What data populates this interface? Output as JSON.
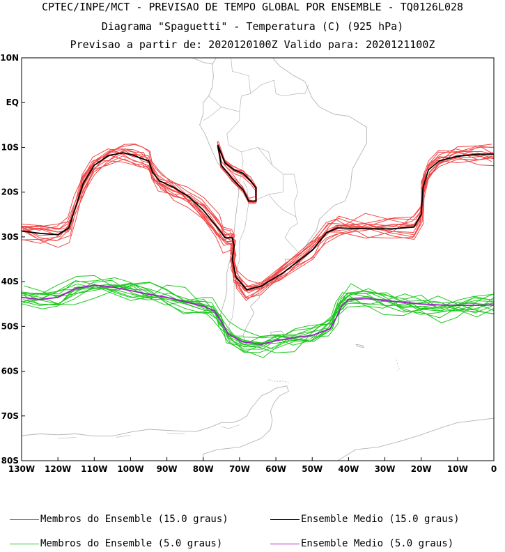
{
  "header": {
    "line1": "CPTEC/INPE/MCT - PREVISAO DE TEMPO GLOBAL POR ENSEMBLE - TQ0126L028",
    "line2": "Diagrama \"Spaguetti\" - Temperatura (C) (925 hPa)",
    "line3": "Previsao a partir de: 2020120100Z  Valido para: 2020121100Z"
  },
  "map": {
    "lon_range": [
      -130,
      0
    ],
    "lat_range": [
      -80,
      10
    ],
    "lat_ticks": [
      "10N",
      "EQ",
      "10S",
      "20S",
      "30S",
      "40S",
      "50S",
      "60S",
      "70S",
      "80S"
    ],
    "lon_ticks": [
      "130W",
      "120W",
      "110W",
      "100W",
      "90W",
      "80W",
      "70W",
      "60W",
      "50W",
      "40W",
      "30W",
      "20W",
      "10W",
      "0"
    ],
    "coast_color": "#b4b4b4",
    "isotherm_15": {
      "member_color": "#f04646",
      "mean_color": "#000000",
      "mean": [
        [
          -130,
          -28.7
        ],
        [
          -125,
          -29.2
        ],
        [
          -120,
          -29.5
        ],
        [
          -117,
          -28
        ],
        [
          -115,
          -23
        ],
        [
          -113,
          -18
        ],
        [
          -110,
          -14
        ],
        [
          -106,
          -11.8
        ],
        [
          -102,
          -11.2
        ],
        [
          -99,
          -11.8
        ],
        [
          -97,
          -12.5
        ],
        [
          -95,
          -13
        ],
        [
          -94,
          -15.5
        ],
        [
          -92,
          -17.5
        ],
        [
          -88,
          -19
        ],
        [
          -84,
          -21
        ],
        [
          -80,
          -24
        ],
        [
          -76,
          -28
        ],
        [
          -74,
          -30.2
        ],
        [
          -72,
          -30.2
        ],
        [
          -71.5,
          -32
        ],
        [
          -72,
          -35
        ],
        [
          -71,
          -39
        ],
        [
          -68,
          -41.8
        ],
        [
          -64,
          -41
        ],
        [
          -58,
          -38
        ],
        [
          -50,
          -33
        ],
        [
          -46,
          -29
        ],
        [
          -43,
          -28
        ],
        [
          -35,
          -28.2
        ],
        [
          -28,
          -28.2
        ],
        [
          -22,
          -27.8
        ],
        [
          -20,
          -25
        ],
        [
          -19.5,
          -19
        ],
        [
          -18,
          -15
        ],
        [
          -15,
          -13
        ],
        [
          -10,
          -12
        ],
        [
          -4,
          -11.5
        ],
        [
          0,
          -11.5
        ]
      ],
      "mean_inland": [
        [
          -76,
          -9.5
        ],
        [
          -74,
          -13.5
        ],
        [
          -71.5,
          -15
        ],
        [
          -69,
          -15.8
        ],
        [
          -67,
          -17.5
        ],
        [
          -65.5,
          -19
        ],
        [
          -65.5,
          -22
        ],
        [
          -67.5,
          -22
        ],
        [
          -69,
          -19.5
        ],
        [
          -72,
          -17
        ],
        [
          -75,
          -14
        ],
        [
          -76,
          -9.5
        ]
      ]
    },
    "isotherm_5": {
      "member_color": "#1ec81e",
      "mean_color": "#a01ec8",
      "mean": [
        [
          -130,
          -43.5
        ],
        [
          -125,
          -44
        ],
        [
          -120,
          -43.5
        ],
        [
          -115,
          -41.5
        ],
        [
          -110,
          -40.8
        ],
        [
          -105,
          -41.2
        ],
        [
          -100,
          -42
        ],
        [
          -95,
          -42.8
        ],
        [
          -90,
          -43.5
        ],
        [
          -85,
          -44.5
        ],
        [
          -80,
          -45.5
        ],
        [
          -77,
          -46.5
        ],
        [
          -75,
          -49
        ],
        [
          -73,
          -51.8
        ],
        [
          -69,
          -53.5
        ],
        [
          -64,
          -54
        ],
        [
          -60,
          -53.2
        ],
        [
          -55,
          -52.5
        ],
        [
          -50,
          -52
        ],
        [
          -45,
          -50.5
        ],
        [
          -43,
          -47.5
        ],
        [
          -42,
          -45.5
        ],
        [
          -40,
          -44
        ],
        [
          -35,
          -43.8
        ],
        [
          -30,
          -44.2
        ],
        [
          -25,
          -44.6
        ],
        [
          -20,
          -45
        ],
        [
          -15,
          -45.2
        ],
        [
          -10,
          -45.3
        ],
        [
          -5,
          -45.3
        ],
        [
          0,
          -45.2
        ]
      ]
    }
  },
  "legend": [
    {
      "label": "Membros do Ensemble (15.0 graus)",
      "color": "#f04646"
    },
    {
      "label": "Ensemble Medio (15.0 graus)",
      "color": "#000000"
    },
    {
      "label": "Membros do Ensemble (5.0 graus)",
      "color": "#1ec81e"
    },
    {
      "label": "Ensemble Medio (5.0 graus)",
      "color": "#a01ec8"
    }
  ]
}
